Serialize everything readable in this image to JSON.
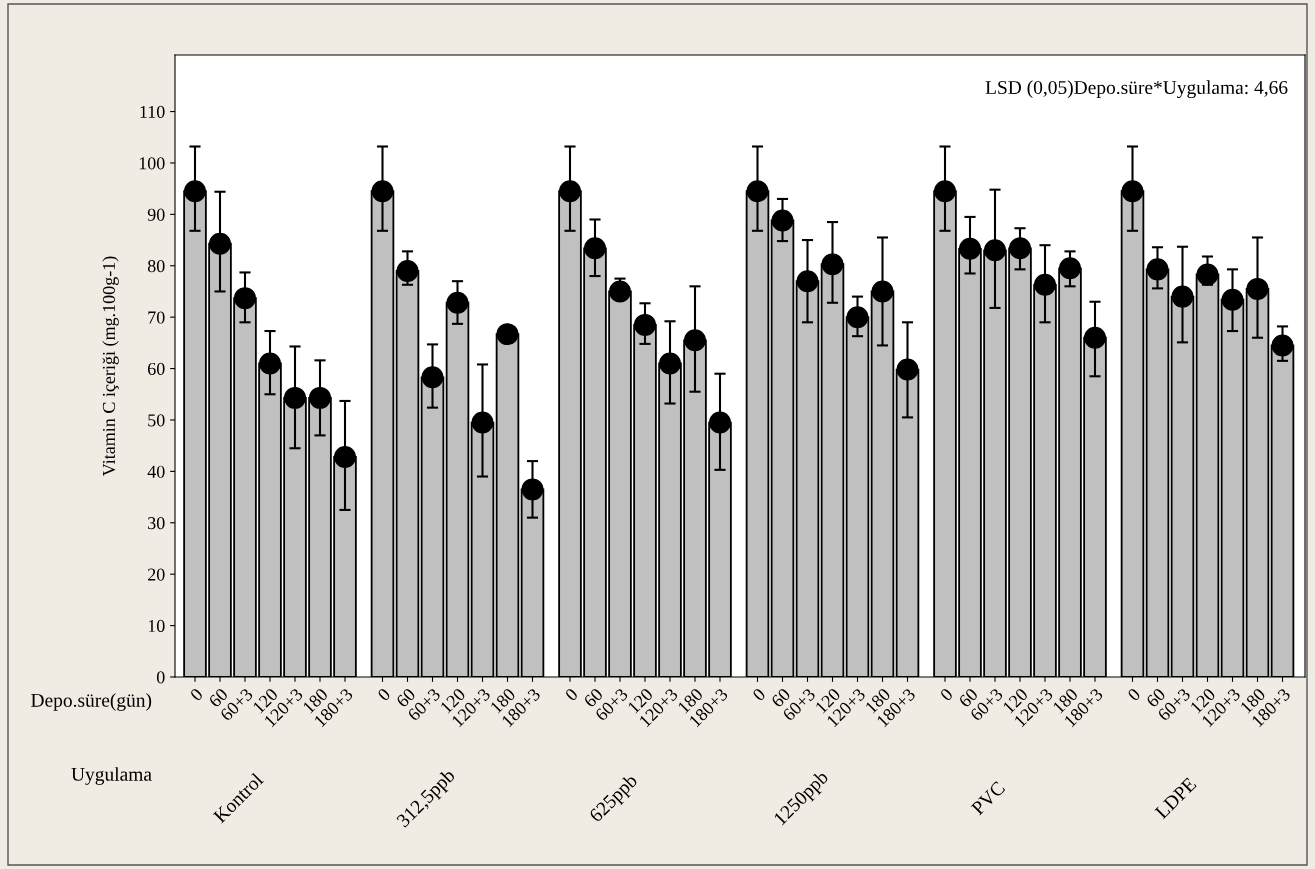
{
  "chart_data": {
    "type": "bar",
    "ylabel": "Vitamin C içeriği (mg.100g-1)",
    "categories": [
      "0",
      "60",
      "60+3",
      "120",
      "120+3",
      "180",
      "180+3",
      "0",
      "60",
      "60+3",
      "120",
      "120+3",
      "180",
      "180+3",
      "0",
      "60",
      "60+3",
      "120",
      "120+3",
      "180",
      "180+3",
      "0",
      "60",
      "60+3",
      "120",
      "120+3",
      "180",
      "180+3",
      "0",
      "60",
      "60+3",
      "120",
      "120+3",
      "180",
      "180+3",
      "0",
      "60",
      "60+3",
      "120",
      "120+3",
      "180",
      "180+3"
    ],
    "series": [
      {
        "color": "#c0c0c0",
        "values": [
          94.5,
          84.3,
          73.7,
          61,
          54.3,
          54.3,
          42.8,
          94.5,
          79,
          58.3,
          72.8,
          49.5,
          66.7,
          36.5,
          94.5,
          83.4,
          75,
          68.5,
          61,
          65.5,
          49.5,
          94.5,
          88.8,
          77,
          80.3,
          70,
          75,
          59.8,
          94.5,
          83.3,
          83,
          83.4,
          76.3,
          79.5,
          66,
          94.5,
          79.3,
          74,
          78.3,
          73.4,
          75.5,
          64.5
        ],
        "errors": [
          [
            86.8,
            103.2
          ],
          [
            75,
            94.4
          ],
          [
            69,
            78.7
          ],
          [
            55,
            67.3
          ],
          [
            44.5,
            64.3
          ],
          [
            47,
            61.6
          ],
          [
            32.5,
            53.7
          ],
          [
            86.8,
            103.2
          ],
          [
            76.3,
            82.8
          ],
          [
            52.4,
            64.7
          ],
          [
            68.7,
            77
          ],
          [
            39,
            60.8
          ],
          null,
          [
            31,
            42
          ],
          [
            86.8,
            103.2
          ],
          [
            78,
            89
          ],
          [
            75,
            77.5
          ],
          [
            64.8,
            72.7
          ],
          [
            53.2,
            69.2
          ],
          [
            55.5,
            76
          ],
          [
            40.3,
            59
          ],
          [
            86.8,
            103.2
          ],
          [
            84.8,
            93
          ],
          [
            69,
            85
          ],
          [
            72.8,
            88.5
          ],
          [
            66.3,
            74
          ],
          [
            64.5,
            85.5
          ],
          [
            50.5,
            69
          ],
          [
            86.8,
            103.2
          ],
          [
            78.5,
            89.5
          ],
          [
            71.8,
            94.8
          ],
          [
            79.3,
            87.3
          ],
          [
            69,
            84
          ],
          [
            76,
            82.8
          ],
          [
            58.5,
            73
          ],
          [
            86.8,
            103.2
          ],
          [
            75.6,
            83.6
          ],
          [
            65.1,
            83.7
          ],
          [
            76.3,
            81.8
          ],
          [
            67.3,
            79.3
          ],
          [
            66,
            85.5
          ],
          [
            61.5,
            68.2
          ]
        ]
      },
      {
        "type": "scatter",
        "color": "#000000",
        "marker": "circle",
        "values": [
          94.5,
          84.3,
          73.7,
          61,
          54.3,
          54.3,
          42.8,
          94.5,
          79,
          58.3,
          72.8,
          49.5,
          66.7,
          36.5,
          94.5,
          83.4,
          75,
          68.5,
          61,
          65.5,
          49.5,
          94.5,
          88.8,
          77,
          80.3,
          70,
          75,
          59.8,
          94.5,
          83.3,
          83,
          83.4,
          76.3,
          79.5,
          66,
          94.5,
          79.3,
          74,
          78.3,
          73.4,
          75.5,
          64.5
        ]
      }
    ],
    "ylim": [
      0,
      121
    ],
    "yticks": [
      0,
      10,
      20,
      30,
      40,
      50,
      60,
      70,
      80,
      90,
      100,
      110
    ],
    "grid": false,
    "legend": false,
    "annotations": [
      "LSD (0,05)Depo.süre*Uygulama: 4,66",
      "Depo.süre(gün)",
      "Uygulama",
      "Kontrol",
      "312,5ppb",
      "625ppb",
      "1250ppb",
      "PVC",
      "LDPE"
    ]
  }
}
